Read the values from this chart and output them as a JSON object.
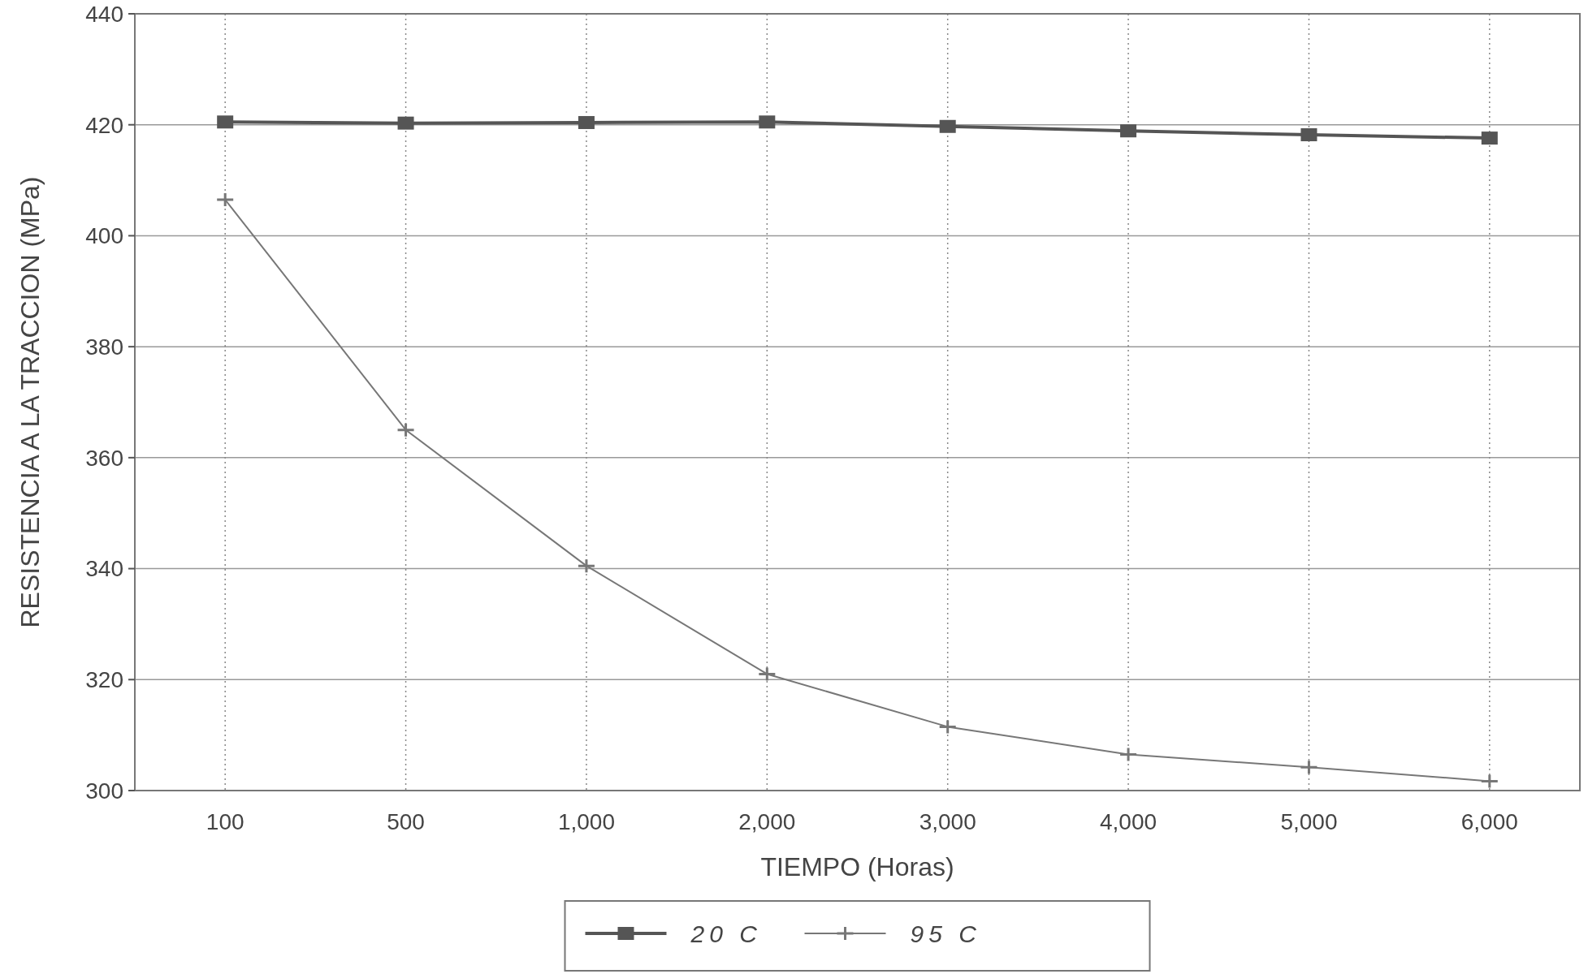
{
  "chart_data": {
    "type": "line",
    "xlabel": "TIEMPO (Horas)",
    "ylabel": "RESISTENCIA A LA TRACCION (MPa)",
    "categories": [
      "100",
      "500",
      "1,000",
      "2,000",
      "3,000",
      "4,000",
      "5,000",
      "6,000"
    ],
    "series": [
      {
        "name": "20 C",
        "color": "#555555",
        "marker": "square",
        "values": [
          420.5,
          420.3,
          420.4,
          420.5,
          419.7,
          418.9,
          418.2,
          417.6
        ]
      },
      {
        "name": "95 C",
        "color": "#777777",
        "marker": "cross",
        "values": [
          406.5,
          365,
          340.5,
          321,
          311.5,
          306.5,
          304.2,
          301.7
        ]
      }
    ],
    "ylim": [
      300,
      440
    ],
    "yticks": [
      300,
      320,
      340,
      360,
      380,
      400,
      420,
      440
    ],
    "grid": true,
    "legend": "bottom",
    "line_style": "solid"
  }
}
